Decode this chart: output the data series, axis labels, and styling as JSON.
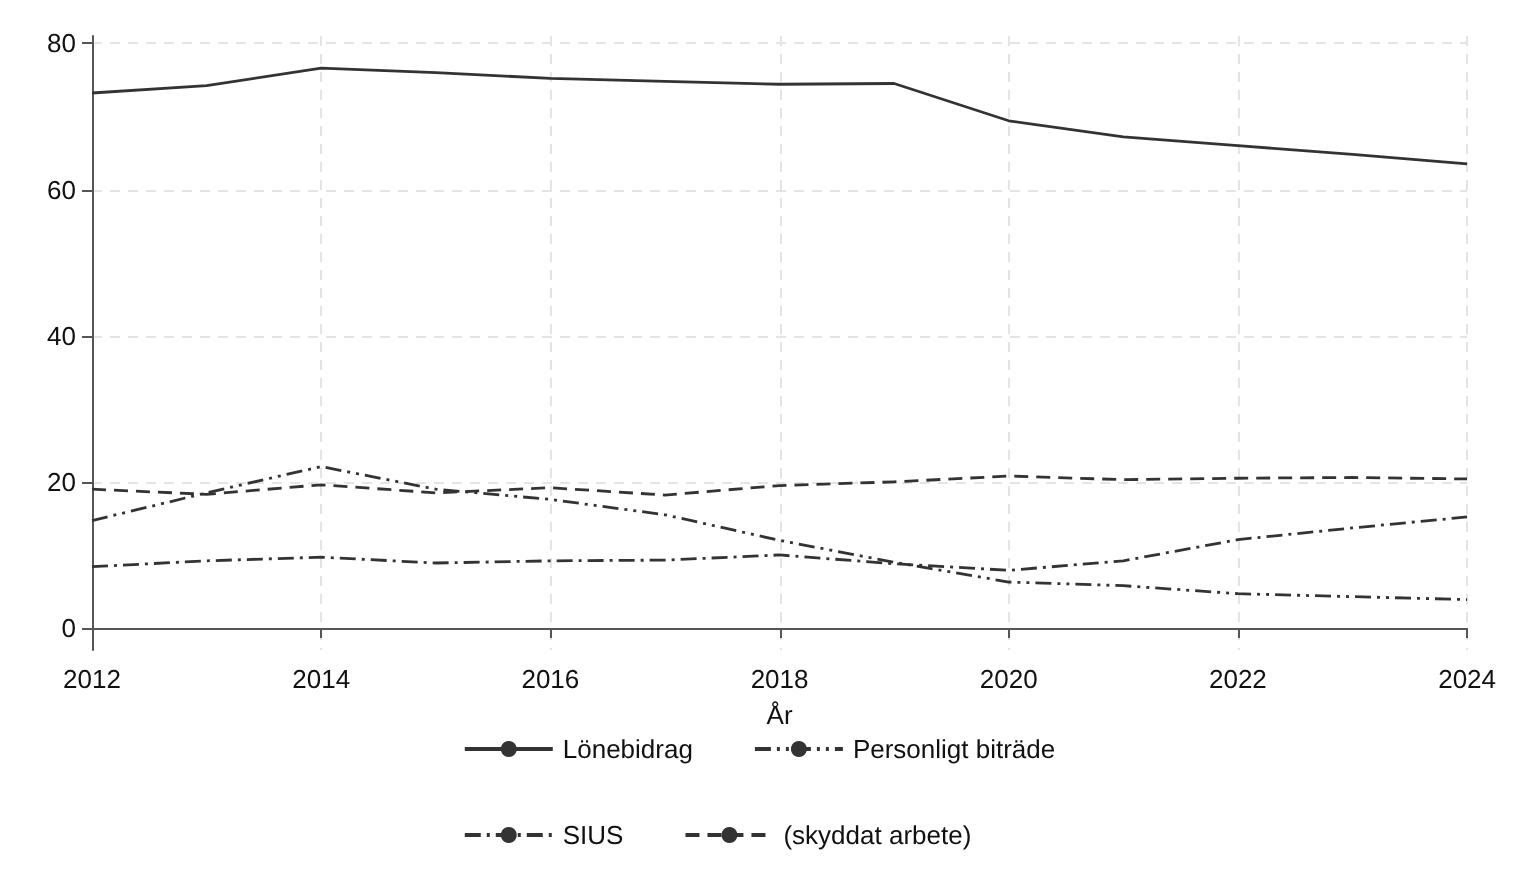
{
  "chart_data": {
    "type": "line",
    "xlabel": "År",
    "x": [
      2012,
      2013,
      2014,
      2015,
      2016,
      2017,
      2018,
      2019,
      2020,
      2021,
      2022,
      2023,
      2024
    ],
    "series": [
      {
        "name": "Lönebidrag",
        "color": "#333333",
        "line_style": "solid",
        "values": [
          73.2,
          74.2,
          76.6,
          76.0,
          75.2,
          74.8,
          74.4,
          74.5,
          69.4,
          67.2,
          66.0,
          64.8,
          63.5
        ]
      },
      {
        "name": "Personligt biträde",
        "color": "#333333",
        "line_style": "dashdotdot",
        "values": [
          14.7,
          18.5,
          22.1,
          19.0,
          17.6,
          15.5,
          12.0,
          9.0,
          6.3,
          5.8,
          4.7,
          4.3,
          3.9
        ]
      },
      {
        "name": "SIUS",
        "color": "#333333",
        "line_style": "dashdot",
        "values": [
          8.4,
          9.2,
          9.7,
          8.9,
          9.2,
          9.3,
          10.0,
          8.8,
          7.9,
          9.2,
          12.1,
          13.7,
          15.2
        ]
      },
      {
        "name": "(skyddat arbete)",
        "color": "#333333",
        "line_style": "dashed",
        "values": [
          19.0,
          18.3,
          19.6,
          18.5,
          19.2,
          18.2,
          19.5,
          20.0,
          20.8,
          20.3,
          20.5,
          20.6,
          20.4
        ]
      }
    ],
    "xlim": [
      2012,
      2024
    ],
    "xticks": [
      2012,
      2014,
      2016,
      2018,
      2020,
      2022,
      2024
    ],
    "ylim": [
      -3,
      81
    ],
    "yticks": [
      0,
      20,
      40,
      60,
      80
    ],
    "grid": true,
    "legend": "bottom",
    "marker": "none"
  }
}
